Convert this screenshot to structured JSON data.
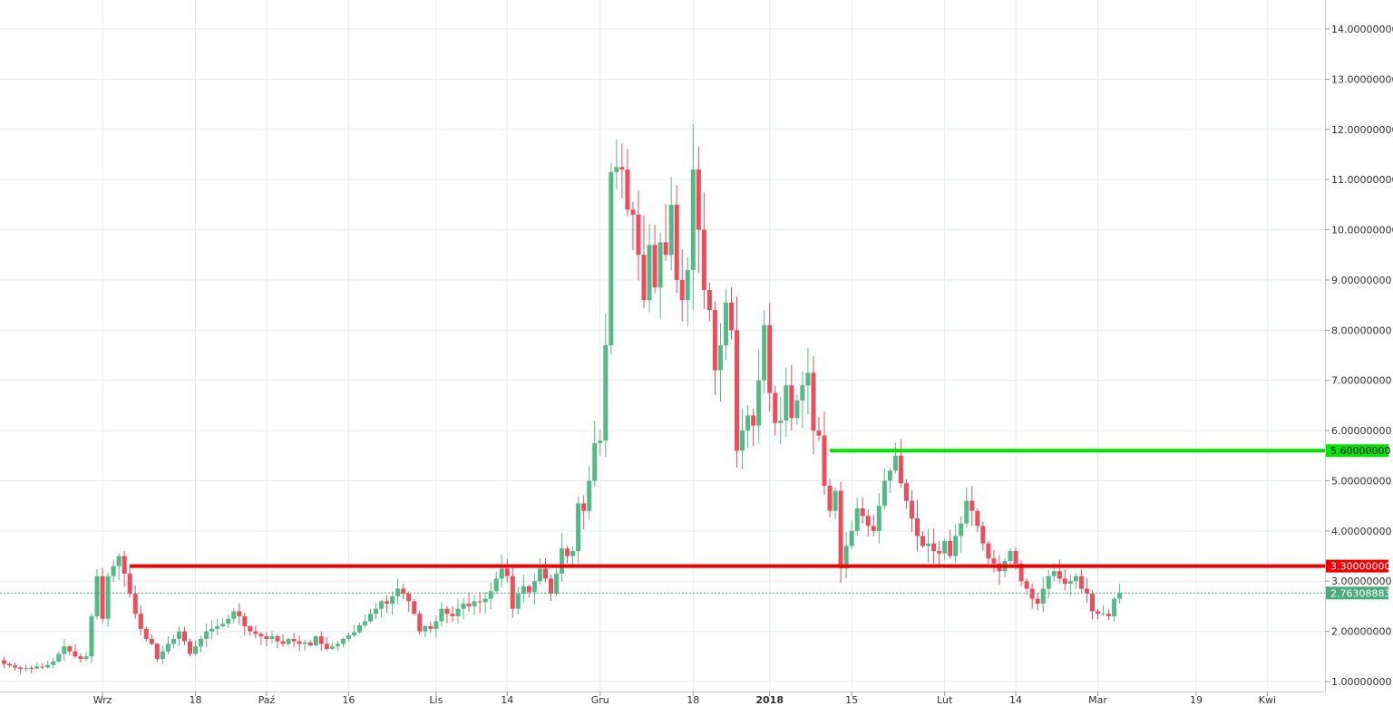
{
  "chart_data": {
    "type": "candlestick",
    "title": "",
    "xlabel": "",
    "ylabel": "",
    "ylim": [
      0.65,
      14.6
    ],
    "grid": true,
    "y_ticks": [
      "1.00000000",
      "2.00000000",
      "3.00000000",
      "4.00000000",
      "5.00000000",
      "6.00000000",
      "7.00000000",
      "8.00000000",
      "9.00000000",
      "10.00000000",
      "11.00000000",
      "12.00000000",
      "13.00000000",
      "14.00000000"
    ],
    "y_tick_values": [
      1,
      2,
      3,
      4,
      5,
      6,
      7,
      8,
      9,
      10,
      11,
      12,
      13,
      14
    ],
    "x_ticks": [
      {
        "label": "Wrz",
        "index": 18,
        "bold": false
      },
      {
        "label": "18",
        "index": 35,
        "bold": false
      },
      {
        "label": "Paź",
        "index": 48,
        "bold": false
      },
      {
        "label": "16",
        "index": 63,
        "bold": false
      },
      {
        "label": "Lis",
        "index": 79,
        "bold": false
      },
      {
        "label": "14",
        "index": 92,
        "bold": false
      },
      {
        "label": "Gru",
        "index": 109,
        "bold": false
      },
      {
        "label": "18",
        "index": 126,
        "bold": false
      },
      {
        "label": "2018",
        "index": 140,
        "bold": true
      },
      {
        "label": "15",
        "index": 155,
        "bold": false
      },
      {
        "label": "Lut",
        "index": 172,
        "bold": false
      },
      {
        "label": "14",
        "index": 185,
        "bold": false
      },
      {
        "label": "Mar",
        "index": 200,
        "bold": false
      },
      {
        "label": "19",
        "index": 218,
        "bold": false
      },
      {
        "label": "Kwi",
        "index": 231,
        "bold": false
      }
    ],
    "closes": [
      1.35,
      1.32,
      1.28,
      1.25,
      1.27,
      1.26,
      1.3,
      1.28,
      1.33,
      1.4,
      1.55,
      1.7,
      1.6,
      1.5,
      1.45,
      1.5,
      2.3,
      3.1,
      2.25,
      3.1,
      3.3,
      3.5,
      3.15,
      2.75,
      2.35,
      2.05,
      1.85,
      1.75,
      1.45,
      1.6,
      1.75,
      1.85,
      2.0,
      1.8,
      1.55,
      1.7,
      1.85,
      2.0,
      2.05,
      2.1,
      2.15,
      2.25,
      2.4,
      2.3,
      2.1,
      2.0,
      1.95,
      1.9,
      1.85,
      1.9,
      1.8,
      1.75,
      1.85,
      1.8,
      1.75,
      1.78,
      1.72,
      1.9,
      1.75,
      1.65,
      1.7,
      1.75,
      1.85,
      1.92,
      1.98,
      2.12,
      2.2,
      2.35,
      2.45,
      2.6,
      2.55,
      2.7,
      2.85,
      2.75,
      2.6,
      2.35,
      2.0,
      2.1,
      2.05,
      2.2,
      2.45,
      2.35,
      2.3,
      2.45,
      2.55,
      2.5,
      2.6,
      2.58,
      2.65,
      2.8,
      3.05,
      3.25,
      3.1,
      2.45,
      2.75,
      2.9,
      2.78,
      3.0,
      3.25,
      3.05,
      2.75,
      3.15,
      3.65,
      3.5,
      3.6,
      4.55,
      4.4,
      5.0,
      5.75,
      5.8,
      7.7,
      11.15,
      11.25,
      11.2,
      10.4,
      10.3,
      9.5,
      8.6,
      9.7,
      8.85,
      9.75,
      9.5,
      10.5,
      9.0,
      8.6,
      9.2,
      11.2,
      10.0,
      8.8,
      8.4,
      7.2,
      7.7,
      8.55,
      8.0,
      5.6,
      6.0,
      6.3,
      6.1,
      7.0,
      8.1,
      6.75,
      6.15,
      6.2,
      6.9,
      6.25,
      6.6,
      6.9,
      7.15,
      6.0,
      5.9,
      4.9,
      4.4,
      4.8,
      3.25,
      3.7,
      4.0,
      4.45,
      4.3,
      4.1,
      4.0,
      4.5,
      5.0,
      5.2,
      5.5,
      4.95,
      4.6,
      4.25,
      3.9,
      3.7,
      3.75,
      3.6,
      3.55,
      3.8,
      3.5,
      3.9,
      4.15,
      4.6,
      4.4,
      4.1,
      3.75,
      3.45,
      3.35,
      3.2,
      3.4,
      3.6,
      3.35,
      3.0,
      2.85,
      2.65,
      2.55,
      2.85,
      3.1,
      3.2,
      3.05,
      2.95,
      3.0,
      3.1,
      2.85,
      2.75,
      2.4,
      2.35,
      2.35,
      2.3,
      2.65,
      2.76
    ]
  },
  "levels": [
    {
      "name": "green-level",
      "value": 5.6,
      "label": "5.60000000",
      "color": "#00e600",
      "start_index": 151
    },
    {
      "name": "red-level",
      "value": 3.3,
      "label": "3.30000000",
      "color": "#f00000",
      "start_index": 23
    }
  ],
  "last_price": {
    "value": 2.76308883,
    "label": "2.76308883",
    "color": "#4aa97e"
  },
  "colors": {
    "up": "#53b987",
    "down": "#eb4d5c",
    "grid": "#e6ecf2",
    "axis": "#999999"
  }
}
